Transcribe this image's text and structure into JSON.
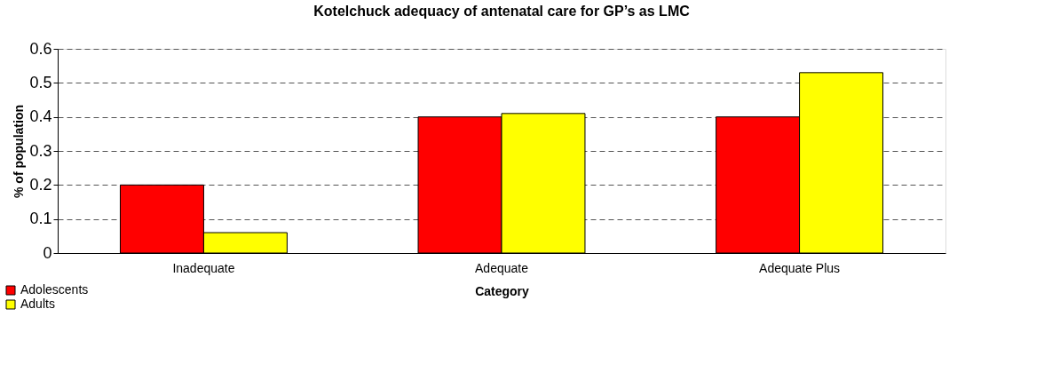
{
  "chart_data": {
    "type": "bar",
    "title": "Kotelchuck adequacy of antenatal care for GP’s as LMC",
    "xlabel": "Category",
    "ylabel": "% of population",
    "categories": [
      "Inadequate",
      "Adequate",
      "Adequate Plus"
    ],
    "series": [
      {
        "name": "Adolescents",
        "color": "#ff0000",
        "values": [
          0.2,
          0.4,
          0.4
        ]
      },
      {
        "name": "Adults",
        "color": "#ffff00",
        "values": [
          0.06,
          0.41,
          0.53
        ]
      }
    ],
    "ylim": [
      0,
      0.6
    ],
    "yticks": [
      0,
      0.1,
      0.2,
      0.3,
      0.4,
      0.5,
      0.6
    ],
    "grid": "y",
    "legend": "bottom left"
  }
}
